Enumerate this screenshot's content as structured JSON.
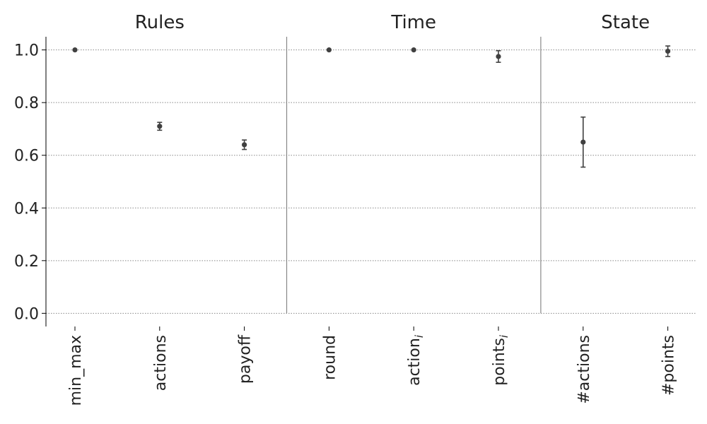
{
  "chart_data": {
    "type": "scatter",
    "title": "",
    "xlabel": "",
    "ylabel": "",
    "ylim": [
      -0.05,
      1.05
    ],
    "yticks": [
      "0.0",
      "0.2",
      "0.4",
      "0.6",
      "0.8",
      "1.0"
    ],
    "ytick_values": [
      0.0,
      0.2,
      0.4,
      0.6,
      0.8,
      1.0
    ],
    "grid": "horizontal dotted",
    "groups": [
      {
        "label": "Rules",
        "categories": [
          0,
          1,
          2
        ]
      },
      {
        "label": "Time",
        "categories": [
          3,
          4,
          5
        ]
      },
      {
        "label": "State",
        "categories": [
          6,
          7
        ]
      }
    ],
    "categories": [
      {
        "base": "min_max",
        "sub": ""
      },
      {
        "base": "actions",
        "sub": ""
      },
      {
        "base": "payoff",
        "sub": ""
      },
      {
        "base": "round",
        "sub": ""
      },
      {
        "base": "action",
        "sub": "i"
      },
      {
        "base": "points",
        "sub": "i"
      },
      {
        "base": "#actions",
        "sub": ""
      },
      {
        "base": "#points",
        "sub": ""
      }
    ],
    "values": [
      1.0,
      0.71,
      0.64,
      1.0,
      1.0,
      0.975,
      0.65,
      0.995
    ],
    "errors": [
      0.0,
      0.015,
      0.018,
      0.0,
      0.0,
      0.022,
      0.095,
      0.02
    ],
    "colors": {
      "marker": "#404040",
      "grid": "#888888",
      "separator": "#888888",
      "axis": "#000000"
    }
  }
}
